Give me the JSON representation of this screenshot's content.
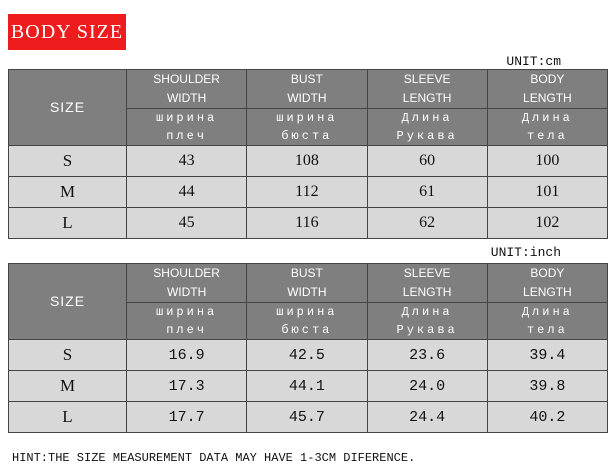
{
  "title": "BODY SIZE",
  "colors": {
    "badge": "#ee1c1c",
    "header": "#7f7f7f",
    "rows": "#d8d8d8"
  },
  "size_header": "SIZE",
  "columns": [
    {
      "en1": "SHOULDER",
      "en2": "WIDTH",
      "ru1": "ширина",
      "ru2": "плеч"
    },
    {
      "en1": "BUST",
      "en2": "WIDTH",
      "ru1": "ширина",
      "ru2": "бюста"
    },
    {
      "en1": "SLEEVE",
      "en2": "LENGTH",
      "ru1": "Длина",
      "ru2": "Рукава"
    },
    {
      "en1": "BODY",
      "en2": "LENGTH",
      "ru1": "Длина",
      "ru2": "тела"
    }
  ],
  "tables": [
    {
      "unit": "UNIT:cm",
      "rows": [
        {
          "size": "S",
          "values": [
            "43",
            "108",
            "60",
            "100"
          ]
        },
        {
          "size": "M",
          "values": [
            "44",
            "112",
            "61",
            "101"
          ]
        },
        {
          "size": "L",
          "values": [
            "45",
            "116",
            "62",
            "102"
          ]
        }
      ]
    },
    {
      "unit": "UNIT:inch",
      "rows": [
        {
          "size": "S",
          "values": [
            "16.9",
            "42.5",
            "23.6",
            "39.4"
          ]
        },
        {
          "size": "M",
          "values": [
            "17.3",
            "44.1",
            "24.0",
            "39.8"
          ]
        },
        {
          "size": "L",
          "values": [
            "17.7",
            "45.7",
            "24.4",
            "40.2"
          ]
        }
      ]
    }
  ],
  "hint": "HINT:THE SIZE MEASUREMENT DATA MAY HAVE 1-3CM DIFERENCE."
}
